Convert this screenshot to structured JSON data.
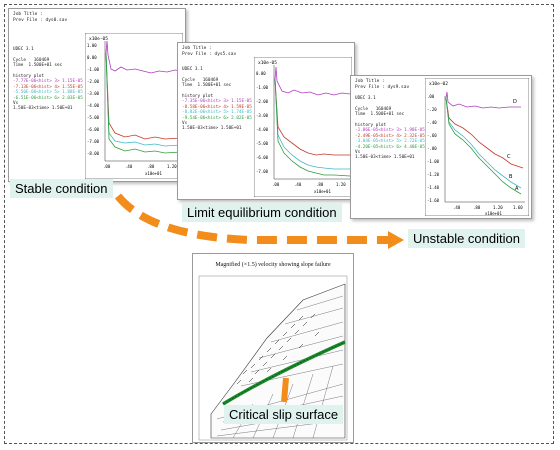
{
  "panels": [
    {
      "id": "stable",
      "job_title": "Job Title :",
      "prev_file": "Prev File : dys0.sav",
      "udec": "UDEC 3.1",
      "cycle": "Cycle   160469",
      "time": "Time  1.500E+01 sec",
      "history_label": "history plot",
      "history_lines": [
        "-7.77E-06<hist> 3> 1.15E-05",
        "-7.13E-06<hist> 4> 1.55E-05",
        "-5.50E-06<hist> 5> 1.88E-05",
        "-6.51E-06<hist> 6> 2.03E-05"
      ],
      "vs": "Vs",
      "time_range": "1.50E-03<time> 1.50E+01",
      "yscale_label": "x10e-05",
      "xscale_label": "x10e+01",
      "yticks": [
        "1.00",
        "0.00",
        "-1.00",
        "-2.00",
        "-3.00",
        "-4.00",
        "-5.00",
        "-6.00",
        "-7.00",
        "-8.00"
      ],
      "xticks": [
        ".00",
        ".40",
        ".80",
        "1.20"
      ]
    },
    {
      "id": "limit",
      "job_title": "Job Title :",
      "prev_file": "Prev File : dys5.sav",
      "udec": "UDEC 3.1",
      "cycle": "Cycle   160469",
      "time": "Time  1.500E+01 sec",
      "history_label": "history plot",
      "history_lines": [
        "-7.35E-06<hist> 3> 1.15E-05",
        "-8.58E-06<hist> 4> 1.59E-05",
        "-8.82E-06<hist> 5> 1.74E-05",
        "-9.54E-06<hist> 6> 2.02E-05"
      ],
      "vs": "Vs",
      "time_range": "1.50E-03<time> 1.50E+01",
      "yscale_label": "x10e-05",
      "xscale_label": "x10e+01",
      "yticks": [
        "0.00",
        "-1.00",
        "-2.00",
        "-3.00",
        "-4.00",
        "-5.00",
        "-6.00",
        "-7.00"
      ],
      "xticks": [
        ".00",
        ".40",
        ".80",
        "1.20"
      ]
    },
    {
      "id": "unstable",
      "job_title": "Job Title :",
      "prev_file": "Prev File : dys9.sav",
      "udec": "UDEC 3.1",
      "cycle": "Cycle   160469",
      "time": "Time  1.500E+01 sec",
      "history_label": "history plot",
      "history_lines": [
        "-1.86E-05<hist> 3> 1.98E-05",
        "-2.49E-05<hist> 4> 2.32E-05",
        "-3.04E-05<hist> 5> 2.72E-05",
        "-4.20E-05<hist> 6> 4.40E-05"
      ],
      "vs": "Vs",
      "time_range": "1.50E-03<time> 1.50E+01",
      "yscale_label": "x10e-02",
      "xscale_label": "x10e+01",
      "yticks": [
        ".00",
        "-.20",
        "-.40",
        "-.60",
        "-.80",
        "-1.00",
        "-1.20",
        "-1.40",
        "-1.60"
      ],
      "xticks": [
        ".40",
        ".80",
        "1.20",
        "1.60"
      ],
      "curve_labels": [
        "D",
        "C",
        "B",
        "A"
      ]
    }
  ],
  "labels": {
    "stable": "Stable condition",
    "limit": "Limit equilibrium condition",
    "unstable": "Unstable condition",
    "slip": "Critical slip surface"
  },
  "slope_title": "Magnified (×1.5) velocity showing slope failure",
  "colors": {
    "arrow": "#f28c1b",
    "label_bg": "#dff2ee",
    "magenta": "#b03cc0",
    "red": "#c0392b",
    "cyan": "#3fb8c8",
    "green": "#2e9e3e",
    "slip_band": "#1a8a2a"
  }
}
